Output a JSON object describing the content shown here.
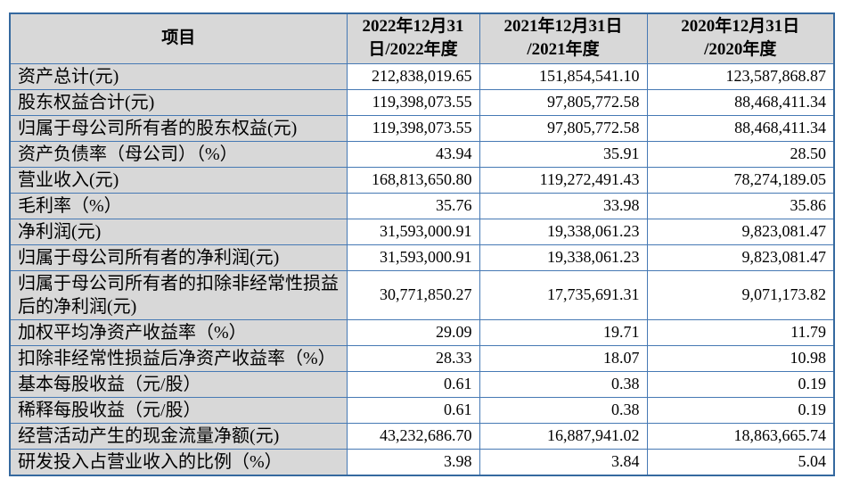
{
  "table": {
    "item_header": "项目",
    "columns": [
      {
        "key": "2022",
        "line1": "2022年12月31",
        "line2": "日/2022年度"
      },
      {
        "key": "2021",
        "line1": "2021年12月31日",
        "line2": "/2021年度"
      },
      {
        "key": "2020",
        "line1": "2020年12月31日",
        "line2": "/2020年度"
      }
    ],
    "rows": [
      {
        "label": "资产总计(元)",
        "values": [
          "212,838,019.65",
          "151,854,541.10",
          "123,587,868.87"
        ]
      },
      {
        "label": "股东权益合计(元)",
        "values": [
          "119,398,073.55",
          "97,805,772.58",
          "88,468,411.34"
        ]
      },
      {
        "label": "归属于母公司所有者的股东权益(元)",
        "values": [
          "119,398,073.55",
          "97,805,772.58",
          "88,468,411.34"
        ]
      },
      {
        "label": "资产负债率（母公司）（%）",
        "values": [
          "43.94",
          "35.91",
          "28.50"
        ]
      },
      {
        "label": "营业收入(元)",
        "values": [
          "168,813,650.80",
          "119,272,491.43",
          "78,274,189.05"
        ]
      },
      {
        "label": "毛利率（%）",
        "values": [
          "35.76",
          "33.98",
          "35.86"
        ]
      },
      {
        "label": "净利润(元)",
        "values": [
          "31,593,000.91",
          "19,338,061.23",
          "9,823,081.47"
        ]
      },
      {
        "label": "归属于母公司所有者的净利润(元)",
        "values": [
          "31,593,000.91",
          "19,338,061.23",
          "9,823,081.47"
        ]
      },
      {
        "label": "归属于母公司所有者的扣除非经常性损益后的净利润(元)",
        "values": [
          "30,771,850.27",
          "17,735,691.31",
          "9,071,173.82"
        ]
      },
      {
        "label": "加权平均净资产收益率（%）",
        "values": [
          "29.09",
          "19.71",
          "11.79"
        ]
      },
      {
        "label": "扣除非经常性损益后净资产收益率（%）",
        "values": [
          "28.33",
          "18.07",
          "10.98"
        ]
      },
      {
        "label": "基本每股收益（元/股）",
        "values": [
          "0.61",
          "0.38",
          "0.19"
        ]
      },
      {
        "label": "稀释每股收益（元/股）",
        "values": [
          "0.61",
          "0.38",
          "0.19"
        ]
      },
      {
        "label": "经营活动产生的现金流量净额(元)",
        "values": [
          "43,232,686.70",
          "16,887,941.02",
          "18,863,665.74"
        ]
      },
      {
        "label": "研发投入占营业收入的比例（%）",
        "values": [
          "3.98",
          "3.84",
          "5.04"
        ]
      }
    ],
    "colors": {
      "border": "#4679b4",
      "border_outer": "#35699f",
      "header_bg": "#d8d8d8",
      "label_bg": "#d8d8d8",
      "cell_bg": "#ffffff",
      "text": "#000000"
    }
  }
}
